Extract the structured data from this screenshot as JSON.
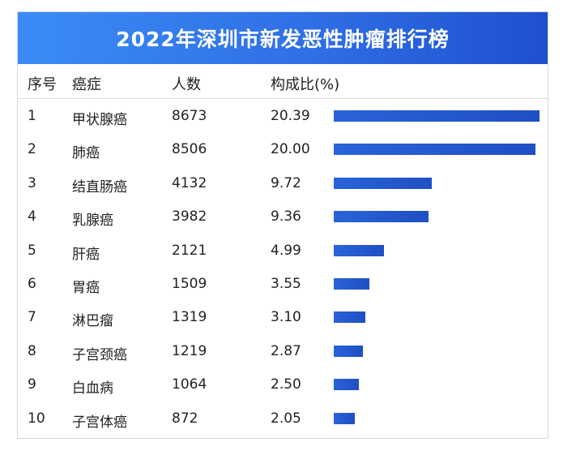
{
  "title": "2022年深圳市新发恶性肿瘤排行榜",
  "headers": {
    "rank": "序号",
    "cancer": "癌症",
    "count": "人数",
    "ratio": "构成比(%)"
  },
  "chart_data": {
    "type": "table",
    "title": "2022年深圳市新发恶性肿瘤排行榜",
    "columns": [
      "序号",
      "癌症",
      "人数",
      "构成比(%)"
    ],
    "categories": [
      "甲状腺癌",
      "肺癌",
      "结直肠癌",
      "乳腺癌",
      "肝癌",
      "胃癌",
      "淋巴瘤",
      "子宫颈癌",
      "白血病",
      "子宫体癌"
    ],
    "rows": [
      {
        "rank": "1",
        "cancer": "甲状腺癌",
        "count": "8673",
        "ratio": "20.39",
        "ratio_value": 20.39
      },
      {
        "rank": "2",
        "cancer": "肺癌",
        "count": "8506",
        "ratio": "20.00",
        "ratio_value": 20.0
      },
      {
        "rank": "3",
        "cancer": "结直肠癌",
        "count": "4132",
        "ratio": "9.72",
        "ratio_value": 9.72
      },
      {
        "rank": "4",
        "cancer": "乳腺癌",
        "count": "3982",
        "ratio": "9.36",
        "ratio_value": 9.36
      },
      {
        "rank": "5",
        "cancer": "肝癌",
        "count": "2121",
        "ratio": "4.99",
        "ratio_value": 4.99
      },
      {
        "rank": "6",
        "cancer": "胃癌",
        "count": "1509",
        "ratio": "3.55",
        "ratio_value": 3.55
      },
      {
        "rank": "7",
        "cancer": "淋巴瘤",
        "count": "1319",
        "ratio": "3.10",
        "ratio_value": 3.1
      },
      {
        "rank": "8",
        "cancer": "子宫颈癌",
        "count": "1219",
        "ratio": "2.87",
        "ratio_value": 2.87
      },
      {
        "rank": "9",
        "cancer": "白血病",
        "count": "1064",
        "ratio": "2.50",
        "ratio_value": 2.5
      },
      {
        "rank": "10",
        "cancer": "子宫体癌",
        "count": "872",
        "ratio": "2.05",
        "ratio_value": 2.05
      }
    ],
    "bar_max": 20.39
  }
}
